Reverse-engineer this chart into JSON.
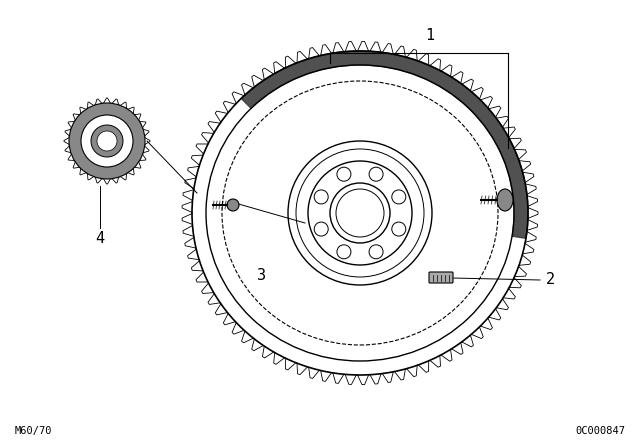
{
  "bg_color": "#ffffff",
  "line_color": "#000000",
  "fig_width": 6.4,
  "fig_height": 4.48,
  "dpi": 100,
  "bottom_left_text": "M60/70",
  "bottom_right_text": "0C000847"
}
